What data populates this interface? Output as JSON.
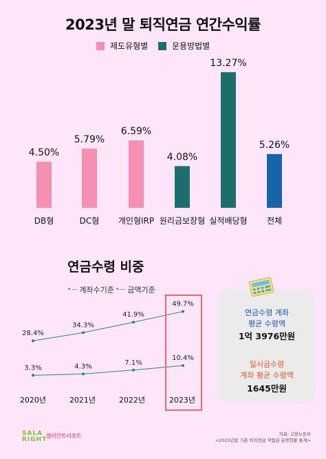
{
  "title": "2023년 말 퇴직연금 연간수익률",
  "legend": [
    {
      "label": "제도유형별",
      "color": "#f48fb1"
    },
    {
      "label": "운용방법별",
      "color": "#1e6e6e"
    }
  ],
  "chart_data": [
    {
      "type": "bar",
      "title": "2023년 말 퇴직연금 연간수익률",
      "categories": [
        "DB형",
        "DC형",
        "개인형IRP",
        "원리금보장형",
        "실적배당형",
        "전체"
      ],
      "values": [
        4.5,
        5.79,
        6.59,
        4.08,
        13.27,
        5.26
      ],
      "value_labels": [
        "4.50%",
        "5.79%",
        "6.59%",
        "4.08%",
        "13.27%",
        "5.26%"
      ],
      "bar_colors": [
        "#f48fb1",
        "#f48fb1",
        "#f48fb1",
        "#1e6e6e",
        "#1e6e6e",
        "#1565a8"
      ],
      "series_group": [
        "제도유형별",
        "제도유형별",
        "제도유형별",
        "운용방법별",
        "운용방법별",
        "전체"
      ],
      "ylim": [
        0,
        14
      ]
    },
    {
      "type": "line",
      "title": "연금수령 비중",
      "x": [
        "2020년",
        "2021년",
        "2022년",
        "2023년"
      ],
      "series": [
        {
          "name": "계좌수기준",
          "values": [
            3.3,
            4.3,
            7.1,
            10.4
          ],
          "labels": [
            "3.3%",
            "4.3%",
            "7.1%",
            "10.4%"
          ]
        },
        {
          "name": "금액기준",
          "values": [
            28.4,
            34.3,
            41.9,
            49.7
          ],
          "labels": [
            "28.4%",
            "34.3%",
            "41.9%",
            "49.7%"
          ]
        }
      ],
      "ylim": [
        0,
        55
      ],
      "line_color": "#2e7d96",
      "highlight": "2023년"
    }
  ],
  "section_title": "연금수령 비중",
  "info": {
    "a_label1": "연금수령 계좌",
    "a_label2": "평균 수령액",
    "a_value": "1억 3976만원",
    "b_label1": "일시금수령",
    "b_label2": "계좌 평균 수령액",
    "b_value": "1645만원"
  },
  "logo": {
    "text1": "SALA",
    "text2": "RIGHT",
    "text3": "샐러던트리포트"
  },
  "source": {
    "line1": "자료: 고용노동부",
    "line2": "<2023년말 기준 퇴직연금 적립금 운용현황 통계>"
  }
}
